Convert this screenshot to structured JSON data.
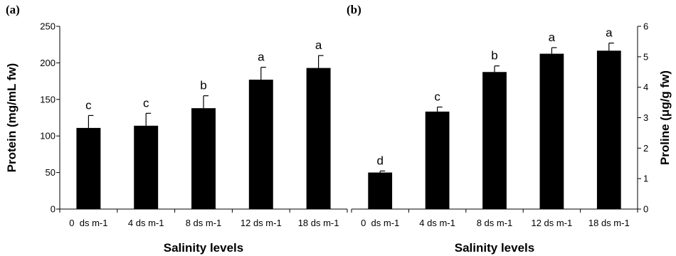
{
  "chart_data": [
    {
      "type": "bar",
      "panel_label": "(a)",
      "categories": [
        "0  ds m-1",
        "4 ds m-1",
        "8 ds m-1",
        "12 ds m-1",
        "18 ds m-1"
      ],
      "values": [
        111,
        114,
        138,
        177,
        193
      ],
      "errors": [
        17,
        17,
        17,
        17,
        17
      ],
      "significance": [
        "c",
        "c",
        "b",
        "a",
        "a"
      ],
      "xlabel": "Salinity levels",
      "ylabel": "Protein (mg/mL fw)",
      "ylim": [
        0,
        250
      ],
      "yticks": [
        0,
        50,
        100,
        150,
        200,
        250
      ],
      "y_axis_side": "left",
      "color": "#000000",
      "grid": false
    },
    {
      "type": "bar",
      "panel_label": "(b)",
      "categories": [
        "0  ds m-1",
        "4 ds m-1",
        "8 ds m-1",
        "12 ds m-1",
        "18 ds m-1"
      ],
      "values": [
        1.2,
        3.2,
        4.5,
        5.1,
        5.2
      ],
      "errors": [
        0.05,
        0.15,
        0.2,
        0.2,
        0.25
      ],
      "significance": [
        "d",
        "c",
        "b",
        "a",
        "a"
      ],
      "xlabel": "Salinity levels",
      "ylabel": "Proline (μg/g fw)",
      "ylim": [
        0,
        6
      ],
      "yticks": [
        0,
        1,
        2,
        3,
        4,
        5,
        6
      ],
      "y_axis_side": "right",
      "color": "#000000",
      "grid": false
    }
  ]
}
